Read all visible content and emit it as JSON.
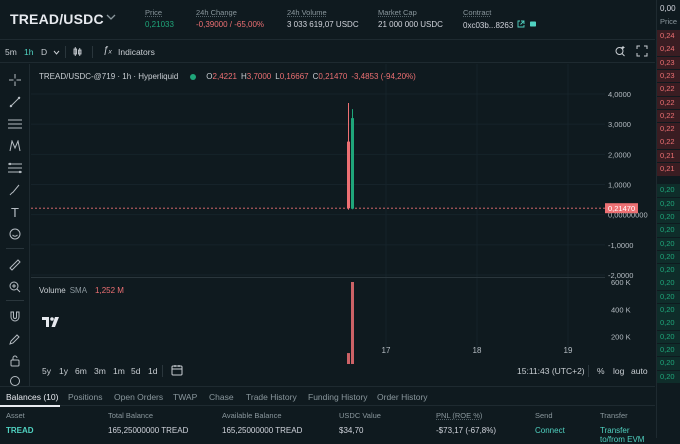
{
  "header": {
    "pair": "TREAD/USDC",
    "stats": [
      {
        "label": "Price",
        "value": "0,21033",
        "tone": "pos"
      },
      {
        "label": "24h Change",
        "value": "-0,39000 / -65,00%",
        "tone": "neg"
      },
      {
        "label": "24h Volume",
        "value": "3 033 619,07 USDC",
        "tone": "neutral"
      },
      {
        "label": "Market Cap",
        "value": "21 000 000 USDC",
        "tone": "neutral"
      },
      {
        "label": "Contract",
        "value": "0xc03b...8263",
        "tone": "neutral"
      }
    ]
  },
  "toolbar": {
    "intervals": [
      "5m",
      "1h",
      "D"
    ],
    "active_interval": "1h",
    "indicators_label": "Indicators"
  },
  "legend": {
    "symbol": "TREAD/USDC-@719 · 1h · Hyperliquid",
    "o_label": "O",
    "o_value": "2,4221",
    "h_label": "H",
    "h_value": "3,7000",
    "l_label": "L",
    "l_value": "0,16667",
    "c_label": "C",
    "c_value": "0,21470",
    "change": "-3,4853 (-94,20%)",
    "volume_label": "Volume",
    "volume_sma": "SMA",
    "volume_value": "1,252 M"
  },
  "price_axis": {
    "ticks": [
      "4,0000",
      "3,0000",
      "2,0000",
      "1,0000",
      "0,00000000",
      "-1,0000",
      "-2,0000"
    ],
    "current_price": "0,21470",
    "volume_ticks": [
      "600 K",
      "400 K",
      "200 K"
    ]
  },
  "time_axis": {
    "ticks": [
      "17",
      "18",
      "19"
    ]
  },
  "timebar": {
    "ranges": [
      "5y",
      "1y",
      "6m",
      "3m",
      "1m",
      "5d",
      "1d"
    ],
    "clock": "15:11:43 (UTC+2)",
    "percent_label": "%",
    "log_label": "log",
    "auto_label": "auto"
  },
  "tabs": {
    "items": [
      "Balances (10)",
      "Positions",
      "Open Orders",
      "TWAP",
      "Chase",
      "Trade History",
      "Funding History",
      "Order History"
    ],
    "active": "Balances (10)"
  },
  "table": {
    "headers": [
      "Asset",
      "Total Balance",
      "Available Balance",
      "USDC Value",
      "PNL (ROE %)",
      "Send",
      "Transfer"
    ],
    "row": {
      "asset": "TREAD",
      "total": "165,25000000 TREAD",
      "available": "165,25000000 TREAD",
      "usdc_value": "$34,70",
      "pnl": "-$73,17 (-67,8%)",
      "send": "Connect",
      "transfer": "Transfer to/from EVM"
    }
  },
  "orderbook": {
    "top_label": "0,00",
    "price_header": "Price",
    "asks": [
      "0,24",
      "0,24",
      "0,23",
      "0,23",
      "0,22",
      "0,22",
      "0,22",
      "0,22",
      "0,22",
      "0,21",
      "0,21"
    ],
    "bids": [
      "0,20",
      "0,20",
      "0,20",
      "0,20",
      "0,20",
      "0,20",
      "0,20",
      "0,20",
      "0,20",
      "0,20",
      "0,20",
      "0,20",
      "0,20",
      "0,20",
      "0,20"
    ]
  },
  "chart_data": {
    "type": "candlestick",
    "candles": [
      {
        "o": 2.4221,
        "h": 3.7,
        "l": 0.16667,
        "c": 0.2147,
        "direction": "down"
      },
      {
        "o": 0.2,
        "h": 3.5,
        "l": 0.18,
        "c": 3.2,
        "direction": "up"
      }
    ],
    "volume": [
      80000,
      1252000
    ],
    "ylim": [
      -2.0,
      4.0
    ],
    "volume_ylim": [
      0,
      600000
    ],
    "colors": {
      "up": "#1fa67a",
      "down": "#ed7073",
      "volume": "#ed7073"
    }
  }
}
